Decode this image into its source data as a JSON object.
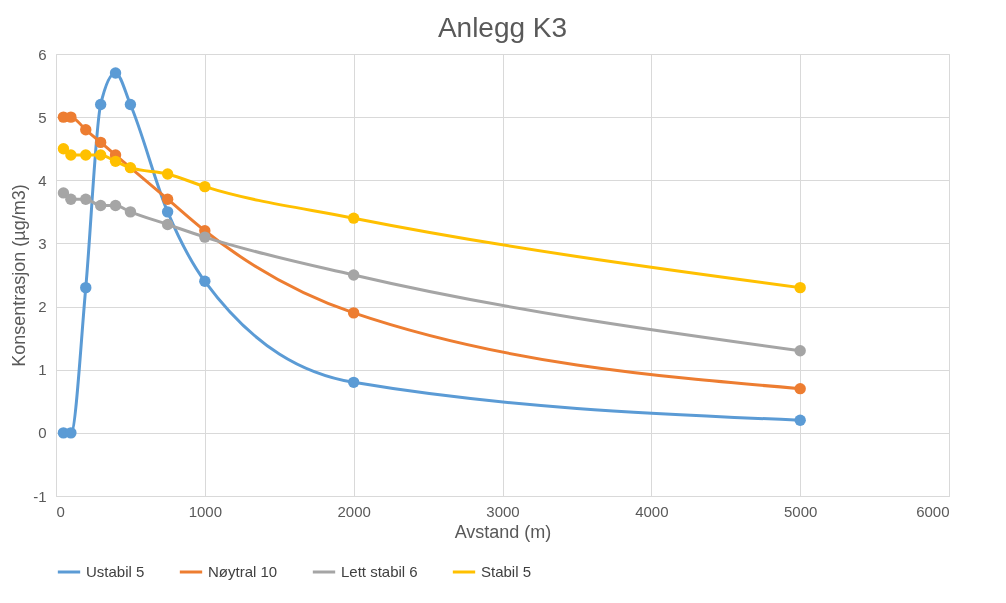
{
  "chart_data": {
    "type": "line",
    "title": "Anlegg K3",
    "xlabel": "Avstand (m)",
    "ylabel": "Konsentrasjon (µg/m3)",
    "x": [
      50,
      100,
      200,
      300,
      400,
      500,
      750,
      1000,
      2000,
      5000
    ],
    "series": [
      {
        "name": "Ustabil 5",
        "color": "#5b9bd5",
        "values": [
          0,
          0,
          2.3,
          5.2,
          5.7,
          5.2,
          3.5,
          2.4,
          0.8,
          0.2
        ]
      },
      {
        "name": "Nøytral 10",
        "color": "#ed7d31",
        "values": [
          5.0,
          5.0,
          4.8,
          4.6,
          4.4,
          null,
          3.7,
          3.2,
          1.9,
          0.7
        ]
      },
      {
        "name": "Lett stabil 6",
        "color": "#a5a5a5",
        "values": [
          3.8,
          3.7,
          3.7,
          3.6,
          3.6,
          3.5,
          3.3,
          3.1,
          2.5,
          1.3
        ]
      },
      {
        "name": "Stabil 5",
        "color": "#ffc000",
        "values": [
          4.5,
          4.4,
          4.4,
          4.4,
          4.3,
          4.2,
          4.1,
          3.9,
          3.4,
          2.3
        ]
      }
    ],
    "xlim": [
      0,
      6000
    ],
    "xticks": [
      0,
      1000,
      2000,
      3000,
      4000,
      5000,
      6000
    ],
    "ylim": [
      -1,
      6
    ],
    "yticks": [
      -1,
      0,
      1,
      2,
      3,
      4,
      5,
      6
    ],
    "grid": true,
    "legend": "bottom",
    "marker": "circle",
    "line_style": "solid"
  }
}
